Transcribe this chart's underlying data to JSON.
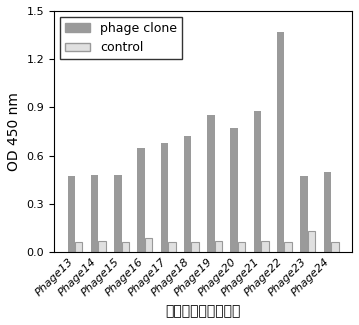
{
  "categories": [
    "Phage13",
    "Phage14",
    "Phage15",
    "Phage16",
    "Phage17",
    "Phage18",
    "Phage19",
    "Phage20",
    "Phage21",
    "Phage22",
    "Phage23",
    "Phage24"
  ],
  "phage_clone_values": [
    0.47,
    0.48,
    0.48,
    0.65,
    0.68,
    0.72,
    0.855,
    0.77,
    0.875,
    1.37,
    0.47,
    0.5
  ],
  "control_values": [
    0.06,
    0.07,
    0.06,
    0.09,
    0.06,
    0.06,
    0.07,
    0.06,
    0.07,
    0.06,
    0.13,
    0.06
  ],
  "phage_clone_color": "#9a9a9a",
  "control_color": "#e0e0e0",
  "control_edgecolor": "#999999",
  "ylabel": "OD 450 nm",
  "xlabel": "噬菌体展示纳米抗体",
  "ylim": [
    0,
    1.5
  ],
  "yticks": [
    0.0,
    0.3,
    0.6,
    0.9,
    1.2,
    1.5
  ],
  "legend_labels": [
    "phage clone",
    "control"
  ],
  "bar_width": 0.32,
  "label_fontsize": 10,
  "tick_fontsize": 8,
  "legend_fontsize": 9
}
